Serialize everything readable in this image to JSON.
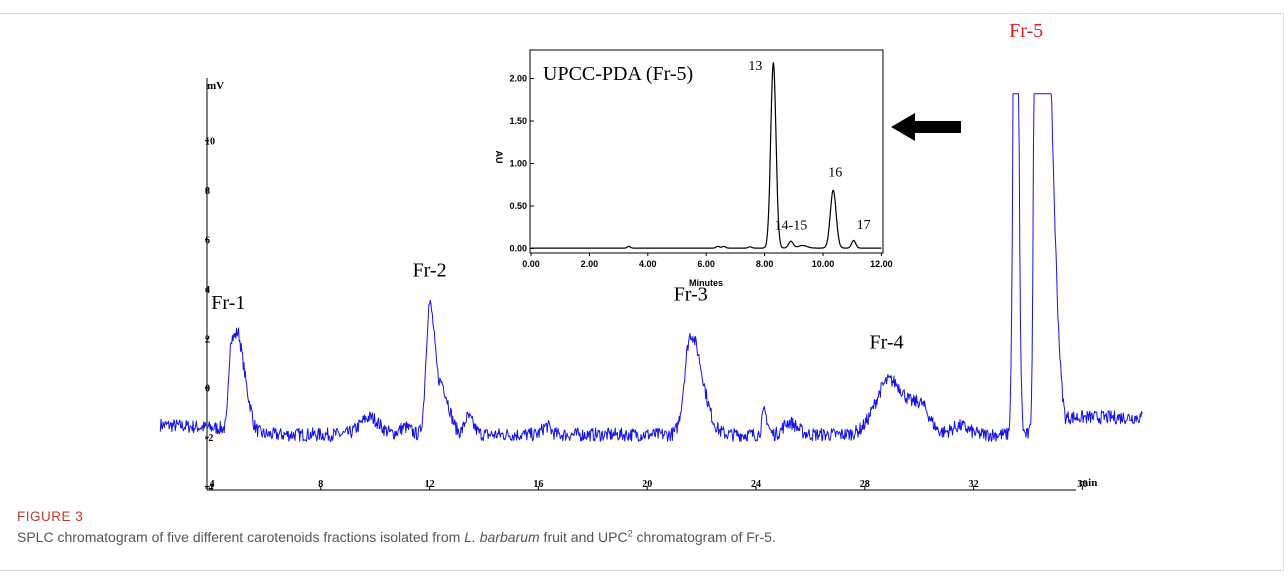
{
  "figure": {
    "label": "FIGURE 3",
    "caption_pre": "SPLC chromatogram of five different carotenoids fractions isolated from ",
    "caption_italic": "L. barbarum",
    "caption_mid": " fruit and UPC",
    "caption_sup": "2",
    "caption_post": " chromatogram of Fr-5."
  },
  "colors": {
    "trace": "#1414e6",
    "axis": "#000000",
    "fr5_label": "#e01b1b",
    "arrow": "#000000"
  },
  "chart_data": [
    {
      "type": "line",
      "ylabel": "mV",
      "xlabel": "min",
      "xlim": [
        4,
        38
      ],
      "ylim": [
        -4,
        12
      ],
      "xticks": [
        4,
        8,
        12,
        16,
        20,
        24,
        28,
        32,
        36
      ],
      "yticks": [
        -4,
        -2,
        0,
        2,
        4,
        6,
        8,
        10
      ],
      "ytick_labels": [
        "-4",
        "-2",
        "0",
        "2",
        "4",
        "6",
        "8",
        "10"
      ],
      "baseline": -1.9,
      "peaks": [
        {
          "label": "Fr-1",
          "x": 4.6,
          "y": 1.8
        },
        {
          "label": "Fr-2",
          "x": 12.0,
          "y": 3.4
        },
        {
          "label": "Fr-3",
          "x": 21.6,
          "y": 2.2
        },
        {
          "label": "Fr-4",
          "x": 28.8,
          "y": 0.3
        },
        {
          "label": "Fr-5",
          "x": 34.3,
          "y": 11.9
        }
      ]
    },
    {
      "type": "line",
      "title": "UPCC-PDA (Fr-5)",
      "xlabel": "Minutes",
      "ylabel": "AU",
      "xlim": [
        0,
        12
      ],
      "ylim": [
        0,
        2.2
      ],
      "xticks": [
        "0.00",
        "2.00",
        "4.00",
        "6.00",
        "8.00",
        "10.00",
        "12.00"
      ],
      "yticks": [
        "0.00",
        "0.50",
        "1.00",
        "1.50",
        "2.00"
      ],
      "peaks": [
        {
          "label": "13",
          "x": 8.3,
          "y": 2.18
        },
        {
          "label": "14-15",
          "x": 8.9,
          "y": 0.08
        },
        {
          "label": "16",
          "x": 10.35,
          "y": 0.68
        },
        {
          "label": "17",
          "x": 11.05,
          "y": 0.09
        }
      ]
    }
  ]
}
